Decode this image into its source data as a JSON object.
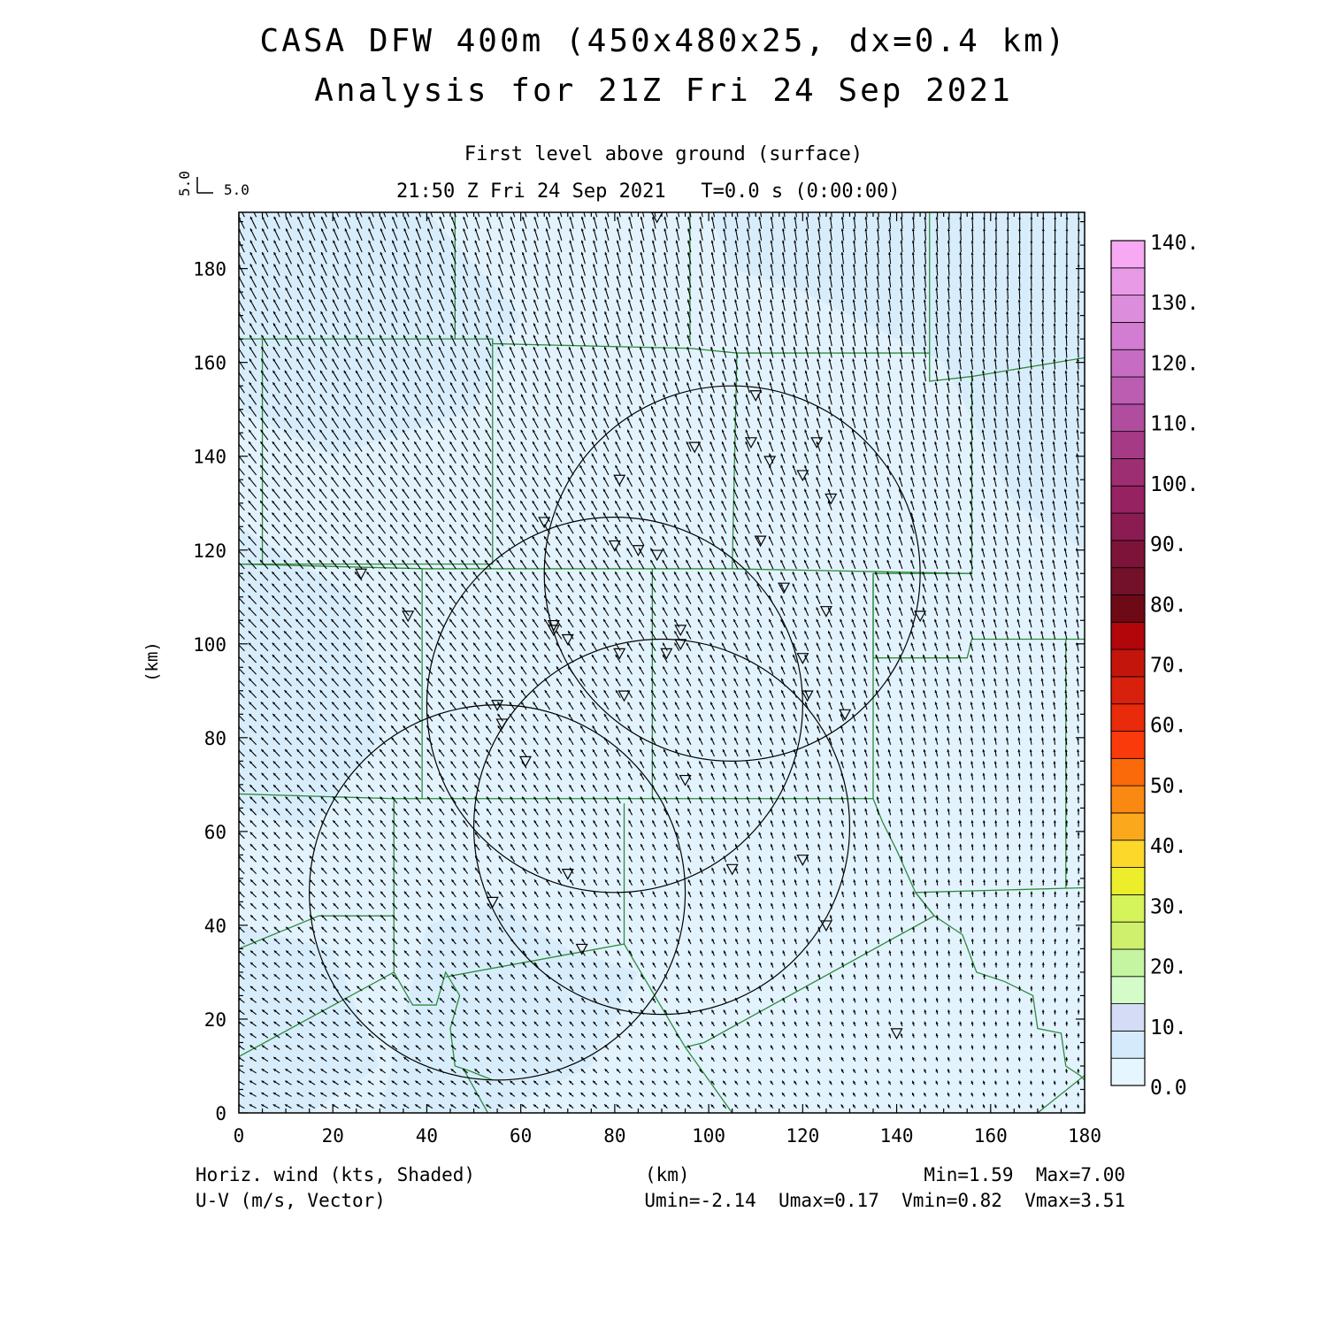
{
  "title": {
    "line1": "CASA DFW 400m (450x480x25, dx=0.4 km)",
    "line2": "Analysis for 21Z Fri 24 Sep 2021"
  },
  "subtitle": {
    "level": "First level above ground (surface)",
    "valid_time": "21:50 Z Fri 24 Sep 2021",
    "model_time": "T=0.0 s (0:00:00)"
  },
  "reference_vector": {
    "vertical_label": "5.0",
    "horizontal_label": "5.0"
  },
  "axes": {
    "xlabel": "(km)",
    "ylabel": "(km)",
    "xticks": [
      "0",
      "20",
      "40",
      "60",
      "80",
      "100",
      "120",
      "140",
      "160",
      "180"
    ],
    "yticks": [
      "0",
      "20",
      "40",
      "60",
      "80",
      "100",
      "120",
      "140",
      "160",
      "180"
    ],
    "xlim": [
      0,
      180
    ],
    "ylim": [
      0,
      192
    ]
  },
  "colorbar": {
    "labels": [
      "0.0",
      "10.",
      "20.",
      "30.",
      "40.",
      "50.",
      "60.",
      "70.",
      "80.",
      "90.",
      "100.",
      "110.",
      "120.",
      "130.",
      "140."
    ],
    "colors": [
      "#e6f6ff",
      "#d5ebfb",
      "#d4dcf6",
      "#d5fbc8",
      "#c6f5a2",
      "#cff06d",
      "#d5f35a",
      "#ecee2c",
      "#fbd82a",
      "#fba81c",
      "#f98912",
      "#fb6a0a",
      "#fb3a0c",
      "#e92b0c",
      "#d8210c",
      "#c4150c",
      "#b1060a",
      "#6e0a16",
      "#73102a",
      "#7d1338",
      "#8a1c52",
      "#962261",
      "#9e2e72",
      "#a63a85",
      "#b14d9f",
      "#bb5db1",
      "#c66cc2",
      "#d27dd1",
      "#dc8ddc",
      "#e99ae6",
      "#f7a9f3"
    ]
  },
  "footer": {
    "left1": "Horiz. wind (kts, Shaded)",
    "left2": "U-V (m/s, Vector)",
    "center": "(km)",
    "right1": "Min=1.59  Max=7.00",
    "right2": "Umin=-2.14  Umax=0.17  Vmin=0.82  Vmax=3.51"
  },
  "map_data": {
    "background_color": "#e3f3fd",
    "county_line_color": "#2e8b3e",
    "wind_speed_range_kts": [
      1.59,
      7.0
    ],
    "u_range_ms": [
      -2.14,
      0.17
    ],
    "v_range_ms": [
      0.82,
      3.51
    ],
    "radars": [
      {
        "cx": 105,
        "cy": 115
      },
      {
        "cx": 80,
        "cy": 87
      },
      {
        "cx": 90,
        "cy": 61
      },
      {
        "cx": 55,
        "cy": 47
      }
    ],
    "radar_range_km": 40,
    "stations": [
      [
        89,
        191
      ],
      [
        110,
        153
      ],
      [
        97,
        142
      ],
      [
        109,
        143
      ],
      [
        113,
        139
      ],
      [
        123,
        143
      ],
      [
        120,
        136
      ],
      [
        126,
        131
      ],
      [
        81,
        135
      ],
      [
        65,
        126
      ],
      [
        80,
        121
      ],
      [
        85,
        120
      ],
      [
        89,
        119
      ],
      [
        111,
        122
      ],
      [
        116,
        112
      ],
      [
        125,
        107
      ],
      [
        26,
        115
      ],
      [
        36,
        106
      ],
      [
        67,
        104
      ],
      [
        67,
        103
      ],
      [
        70,
        101
      ],
      [
        81,
        98
      ],
      [
        94,
        103
      ],
      [
        91,
        98
      ],
      [
        94,
        100
      ],
      [
        120,
        97
      ],
      [
        82,
        89
      ],
      [
        121,
        89
      ],
      [
        129,
        85
      ],
      [
        145,
        106
      ],
      [
        55,
        87
      ],
      [
        56,
        83
      ],
      [
        61,
        75
      ],
      [
        95,
        71
      ],
      [
        70,
        51
      ],
      [
        105,
        52
      ],
      [
        120,
        54
      ],
      [
        54,
        45
      ],
      [
        125,
        40
      ],
      [
        73,
        35
      ],
      [
        140,
        17
      ]
    ]
  }
}
